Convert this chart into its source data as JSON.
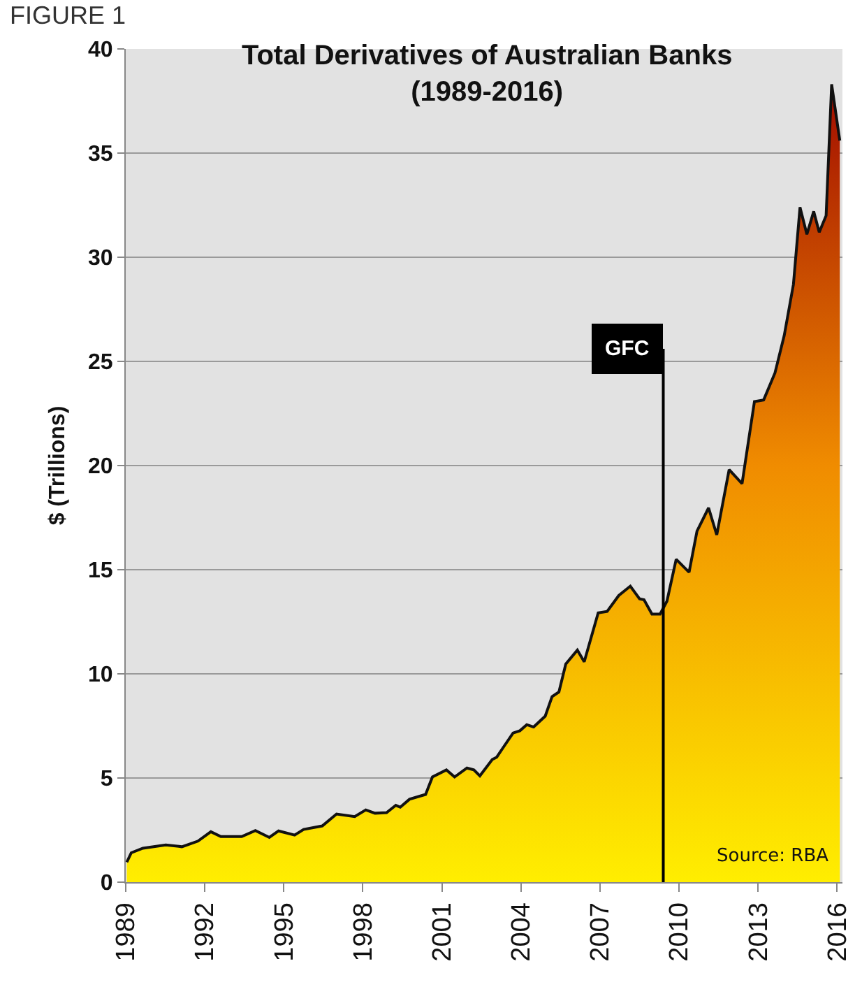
{
  "chart_data": {
    "type": "area",
    "title": "Total Derivatives of Australian Banks\n(1989-2016)",
    "ylabel": "$ (Trillions)",
    "annotations": [
      "FIGURE 1",
      "Source: RBA"
    ],
    "x": [
      1989.04,
      1989.21,
      1989.65,
      1990.52,
      1991.13,
      1991.74,
      1992.23,
      1992.61,
      1993.4,
      1993.92,
      1994.45,
      1994.8,
      1995.41,
      1995.75,
      1996.46,
      1997.0,
      1997.69,
      1998.11,
      1998.46,
      1998.9,
      1999.25,
      1999.42,
      1999.77,
      2000.38,
      2000.64,
      2001.17,
      2001.48,
      2001.95,
      2002.21,
      2002.44,
      2002.91,
      2003.08,
      2003.35,
      2003.7,
      2003.96,
      2004.22,
      2004.48,
      2004.92,
      2005.18,
      2005.44,
      2005.7,
      2006.14,
      2006.4,
      2006.93,
      2007.27,
      2007.71,
      2008.15,
      2008.5,
      2008.67,
      2008.97,
      2009.28,
      2009.54,
      2009.89,
      2010.38,
      2010.68,
      2011.12,
      2011.43,
      2011.9,
      2012.39,
      2012.86,
      2013.21,
      2013.64,
      2013.99,
      2014.34,
      2014.59,
      2014.85,
      2015.11,
      2015.32,
      2015.58,
      2015.79,
      2016.1
    ],
    "series": [
      {
        "color": "#f08c00",
        "values": [
          0.96,
          1.41,
          1.63,
          1.79,
          1.7,
          1.97,
          2.42,
          2.19,
          2.19,
          2.48,
          2.15,
          2.46,
          2.26,
          2.53,
          2.7,
          3.27,
          3.15,
          3.47,
          3.31,
          3.34,
          3.69,
          3.6,
          3.98,
          4.21,
          5.05,
          5.39,
          5.05,
          5.48,
          5.39,
          5.1,
          5.89,
          6.0,
          6.51,
          7.16,
          7.27,
          7.56,
          7.45,
          7.97,
          8.91,
          9.13,
          10.47,
          11.14,
          10.58,
          12.93,
          13.0,
          13.76,
          14.21,
          13.6,
          13.56,
          12.87,
          12.87,
          13.49,
          15.5,
          14.88,
          16.85,
          17.97,
          16.67,
          19.8,
          19.13,
          23.07,
          23.15,
          24.45,
          26.24,
          28.7,
          32.4,
          31.1,
          32.2,
          31.2,
          32.0,
          38.3,
          35.6
        ]
      }
    ],
    "xlim": [
      1989,
      2016.2
    ],
    "xticks": [
      1989,
      1992,
      1995,
      1998,
      2001,
      2004,
      2007,
      2010,
      2013,
      2016
    ],
    "ylim": [
      0,
      40
    ],
    "yticks": [
      0,
      5,
      10,
      15,
      20,
      25,
      30,
      35,
      40
    ],
    "ref_lines": [
      {
        "axis": "x",
        "value": 2009.4,
        "label": "GFC"
      }
    ],
    "grid": "y"
  }
}
